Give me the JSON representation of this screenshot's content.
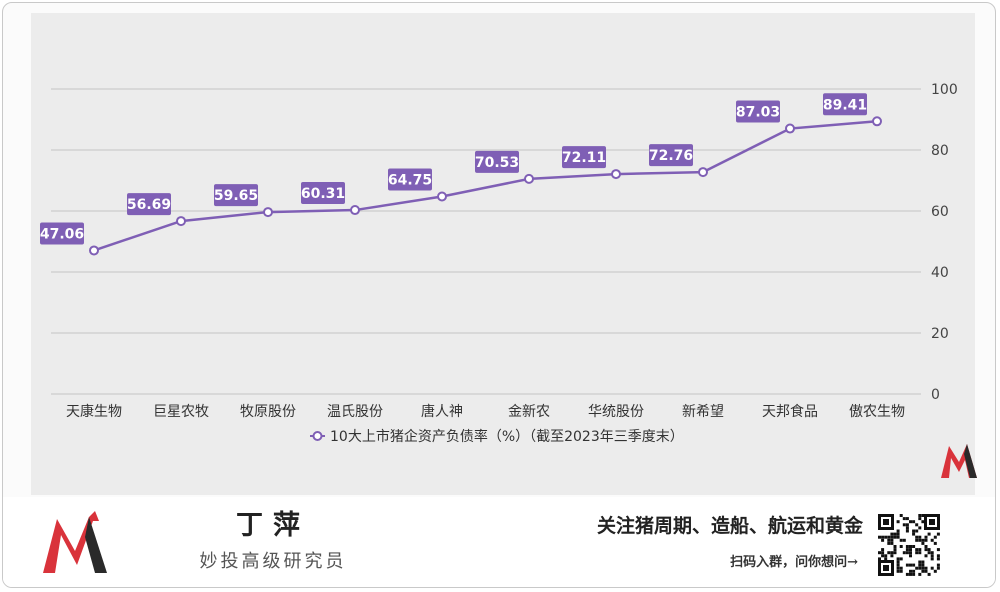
{
  "chart_data": {
    "type": "line",
    "categories": [
      "天康生物",
      "巨星农牧",
      "牧原股份",
      "温氏股份",
      "唐人神",
      "金新农",
      "华统股份",
      "新希望",
      "天邦食品",
      "傲农生物"
    ],
    "series": [
      {
        "name": "10大上市猪企资产负债率（%）（截至2023年三季度末）",
        "values": [
          47.06,
          56.69,
          59.65,
          60.31,
          64.75,
          70.53,
          72.11,
          72.76,
          87.03,
          89.41
        ],
        "color": "#7f5fb5"
      }
    ],
    "ylim": [
      0,
      100
    ],
    "yticks": [
      0,
      20,
      40,
      60,
      80,
      100
    ],
    "y_axis_side": "right",
    "grid": true,
    "legend": "bottom-center",
    "data_labels": true
  },
  "footer": {
    "author_name": "丁萍",
    "author_title": "妙投高级研究员",
    "slogan": "关注猪周期、造船、航运和黄金",
    "cta": "扫码入群，问你想问→"
  },
  "logo_icon": "red-m-logo-icon",
  "qr_icon": "qr-code-icon",
  "colors": {
    "line": "#7f5fb5",
    "panel": "#ececec",
    "logo_red": "#d9333b",
    "logo_dark": "#2a2a2a"
  }
}
